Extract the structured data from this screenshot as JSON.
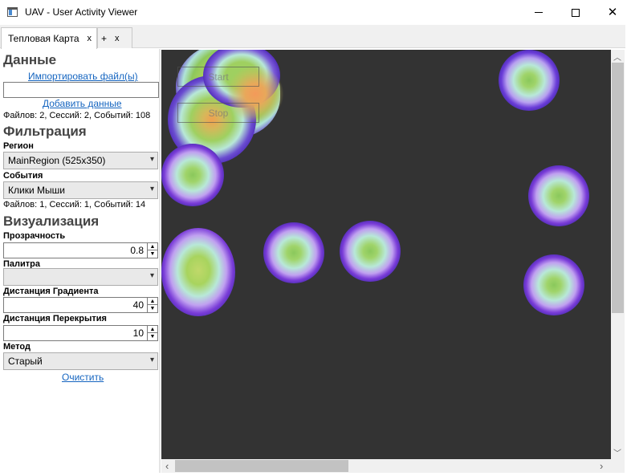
{
  "window": {
    "title": "UAV - User Activity Viewer",
    "close_glyph": "✕"
  },
  "tabs": [
    {
      "label": "Тепловая Карта",
      "close": "x"
    },
    {
      "label": "+",
      "close": "x"
    }
  ],
  "data_section": {
    "title": "Данные",
    "import_link": "Импортировать файл(ы)",
    "file_path_value": "",
    "add_link": "Добавить данные",
    "summary": "Файлов: 2, Сессий: 2, Событий: 108"
  },
  "filter_section": {
    "title": "Фильтрация",
    "region_label": "Регион",
    "region_value": "MainRegion (525x350)",
    "events_label": "События",
    "events_value": "Клики Мыши",
    "summary": "Файлов: 1, Сессий: 1, Событий: 14"
  },
  "viz_section": {
    "title": "Визуализация",
    "opacity_label": "Прозрачность",
    "opacity_value": "0.8",
    "palette_label": "Палитра",
    "palette_value": "",
    "gradient_label": "Дистанция Градиента",
    "gradient_value": "40",
    "overlap_label": "Дистанция Перекрытия",
    "overlap_value": "10",
    "method_label": "Метод",
    "method_value": "Старый",
    "clear_link": "Очистить"
  },
  "heatmap": {
    "start_label": "Start",
    "stop_label": "Stop",
    "background": "#333333"
  },
  "icons": {
    "dropdown": "▾",
    "spin_up": "▲",
    "spin_down": "▼",
    "scroll_up": "︿",
    "scroll_down": "﹀",
    "scroll_left": "‹",
    "scroll_right": "›"
  }
}
